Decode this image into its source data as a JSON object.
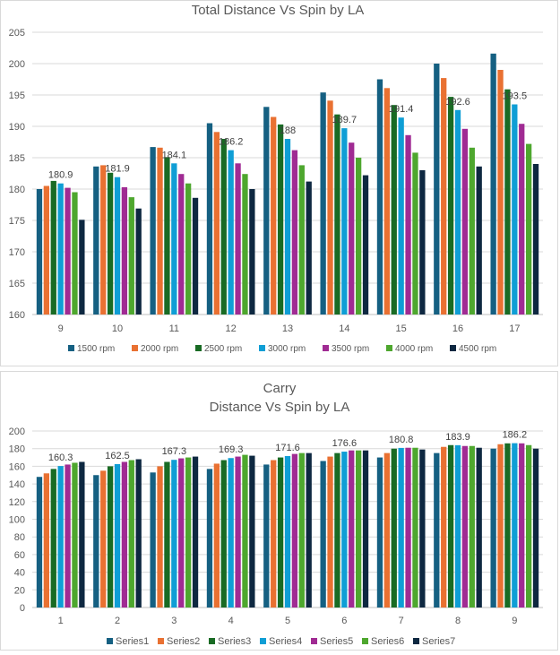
{
  "chart_data": [
    {
      "type": "bar",
      "title": "Total Distance Vs Spin by LA",
      "xlabel": "",
      "ylabel": "",
      "ylim": [
        160,
        205
      ],
      "ytick_step": 5,
      "grid": true,
      "legend_position": "bottom",
      "categories": [
        "9",
        "10",
        "11",
        "12",
        "13",
        "14",
        "15",
        "16",
        "17"
      ],
      "series": [
        {
          "name": "1500 rpm",
          "color": "#156082",
          "values": [
            180.0,
            183.6,
            186.7,
            190.5,
            193.1,
            195.4,
            197.5,
            200.0,
            201.6
          ]
        },
        {
          "name": "2000 rpm",
          "color": "#E97132",
          "values": [
            180.5,
            183.8,
            186.6,
            189.1,
            191.5,
            194.1,
            196.1,
            197.7,
            199.0
          ]
        },
        {
          "name": "2500 rpm",
          "color": "#196B24",
          "values": [
            181.3,
            182.6,
            185.1,
            188.0,
            190.3,
            191.9,
            193.4,
            194.7,
            195.9
          ]
        },
        {
          "name": "3000 rpm",
          "color": "#0F9ED5",
          "values": [
            180.9,
            181.9,
            184.1,
            186.2,
            188.0,
            189.7,
            191.4,
            192.6,
            193.5
          ]
        },
        {
          "name": "3500 rpm",
          "color": "#A02B93",
          "values": [
            180.2,
            180.3,
            182.4,
            184.1,
            186.2,
            187.4,
            188.6,
            189.6,
            190.4
          ]
        },
        {
          "name": "4000 rpm",
          "color": "#4EA72E",
          "values": [
            179.5,
            178.7,
            180.9,
            182.4,
            183.8,
            185.0,
            185.8,
            186.6,
            187.2
          ]
        },
        {
          "name": "4500 rpm",
          "color": "#0E2841",
          "values": [
            175.1,
            176.9,
            178.6,
            180.0,
            181.2,
            182.2,
            183.0,
            183.6,
            184.0
          ]
        }
      ],
      "data_labels": {
        "series_index": 3,
        "labels": [
          "180.9",
          "181.9",
          "184.1",
          "186.2",
          "188",
          "189.7",
          "191.4",
          "192.6",
          "193.5"
        ]
      }
    },
    {
      "type": "bar",
      "title": "Carry",
      "subtitle": "Distance Vs Spin by LA",
      "xlabel": "",
      "ylabel": "",
      "ylim": [
        0,
        200
      ],
      "ytick_step": 20,
      "grid": true,
      "legend_position": "bottom",
      "categories": [
        "1",
        "2",
        "3",
        "4",
        "5",
        "6",
        "7",
        "8",
        "9"
      ],
      "series": [
        {
          "name": "Series1",
          "color": "#156082",
          "values": [
            148,
            150,
            153,
            157,
            162,
            166,
            170,
            175,
            180
          ]
        },
        {
          "name": "Series2",
          "color": "#E97132",
          "values": [
            152,
            155,
            160,
            163,
            167,
            171,
            175,
            182,
            185
          ]
        },
        {
          "name": "Series3",
          "color": "#196B24",
          "values": [
            157,
            160,
            165,
            167,
            170,
            175,
            180,
            184,
            186
          ]
        },
        {
          "name": "Series4",
          "color": "#0F9ED5",
          "values": [
            160.3,
            162.5,
            167.3,
            169.3,
            171.6,
            176.6,
            180.8,
            183.9,
            186.2
          ]
        },
        {
          "name": "Series5",
          "color": "#A02B93",
          "values": [
            162,
            165,
            169,
            171,
            174,
            178,
            181,
            183,
            186
          ]
        },
        {
          "name": "Series6",
          "color": "#4EA72E",
          "values": [
            164,
            167,
            170,
            173,
            175,
            178,
            181,
            183,
            184
          ]
        },
        {
          "name": "Series7",
          "color": "#0E2841",
          "values": [
            165,
            168,
            171,
            172,
            175,
            178,
            179,
            181,
            180
          ]
        }
      ],
      "data_labels": {
        "series_index": 3,
        "labels": [
          "160.3",
          "162.5",
          "167.3",
          "169.3",
          "171.6",
          "176.6",
          "180.8",
          "183.9",
          "186.2"
        ]
      }
    }
  ]
}
